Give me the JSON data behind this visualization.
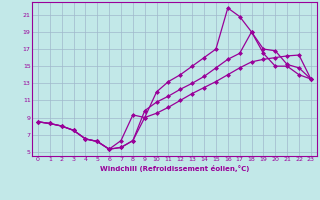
{
  "xlabel": "Windchill (Refroidissement éolien,°C)",
  "bg_color": "#c2e8e8",
  "grid_color": "#a0b8cc",
  "line_color": "#990099",
  "marker": "D",
  "markersize": 2.0,
  "linewidth": 0.9,
  "xlim": [
    -0.5,
    23.5
  ],
  "ylim": [
    4.5,
    22.5
  ],
  "yticks": [
    5,
    7,
    9,
    11,
    13,
    15,
    17,
    19,
    21
  ],
  "xticks": [
    0,
    1,
    2,
    3,
    4,
    5,
    6,
    7,
    8,
    9,
    10,
    11,
    12,
    13,
    14,
    15,
    16,
    17,
    18,
    19,
    20,
    21,
    22,
    23
  ],
  "line1_x": [
    0,
    1,
    2,
    3,
    4,
    5,
    6,
    7,
    8,
    9,
    10,
    11,
    12,
    13,
    14,
    15,
    16,
    17,
    18,
    19,
    20,
    21,
    22,
    23
  ],
  "line1_y": [
    8.5,
    8.3,
    8.0,
    7.5,
    6.5,
    6.2,
    5.3,
    6.3,
    9.3,
    9.0,
    12.0,
    13.2,
    14.0,
    15.0,
    16.0,
    17.0,
    21.8,
    20.8,
    19.0,
    16.5,
    15.0,
    15.0,
    14.0,
    13.5
  ],
  "line2_x": [
    0,
    1,
    2,
    3,
    4,
    5,
    6,
    7,
    8,
    9,
    10,
    11,
    12,
    13,
    14,
    15,
    16,
    17,
    18,
    19,
    20,
    21,
    22,
    23
  ],
  "line2_y": [
    8.5,
    8.3,
    8.0,
    7.5,
    6.5,
    6.2,
    5.3,
    5.5,
    6.3,
    9.8,
    10.8,
    11.5,
    12.3,
    13.0,
    13.8,
    14.8,
    15.8,
    16.5,
    19.0,
    17.0,
    16.8,
    15.2,
    14.8,
    13.5
  ],
  "line3_x": [
    0,
    1,
    2,
    3,
    4,
    5,
    6,
    7,
    8,
    9,
    10,
    11,
    12,
    13,
    14,
    15,
    16,
    17,
    18,
    19,
    20,
    21,
    22,
    23
  ],
  "line3_y": [
    8.5,
    8.3,
    8.0,
    7.5,
    6.5,
    6.2,
    5.3,
    5.5,
    6.3,
    9.0,
    9.5,
    10.2,
    11.0,
    11.8,
    12.5,
    13.2,
    14.0,
    14.8,
    15.5,
    15.8,
    16.0,
    16.2,
    16.3,
    13.5
  ]
}
